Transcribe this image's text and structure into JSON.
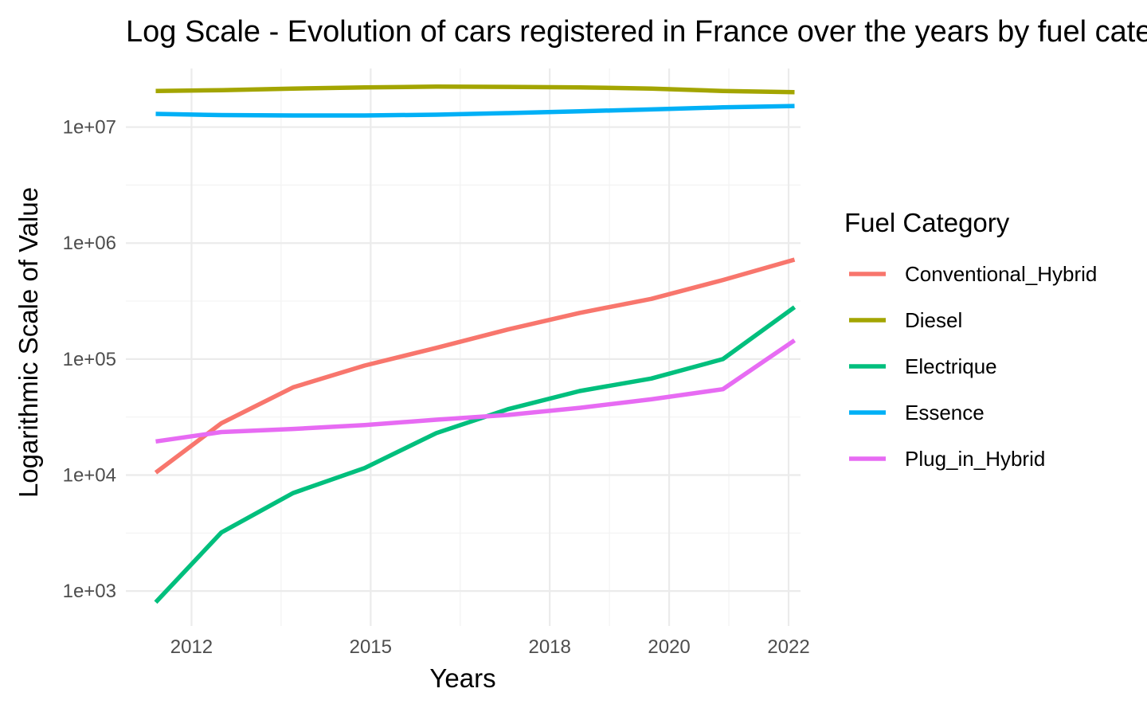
{
  "chart_data": {
    "type": "line",
    "title": "Log Scale - Evolution of cars registered in France over the years by fuel category",
    "xlabel": "Years",
    "ylabel": "Logarithmic Scale of Value",
    "x_scale": "linear",
    "y_scale": "log10",
    "xlim": [
      2010.9,
      2022.2
    ],
    "ylim": [
      500,
      32000000
    ],
    "x_ticks": [
      2012,
      2015,
      2018,
      2020,
      2022
    ],
    "x_tick_labels": [
      "2012",
      "2015",
      "2018",
      "2020",
      "2022"
    ],
    "y_ticks": [
      1000,
      10000,
      100000,
      1000000,
      10000000
    ],
    "y_tick_labels": [
      "1e+03",
      "1e+04",
      "1e+05",
      "1e+06",
      "1e+07"
    ],
    "grid": true,
    "legend": {
      "title": "Fuel Category",
      "position": "right"
    },
    "x": [
      2011.4,
      2012.5,
      2013.7,
      2014.9,
      2016.1,
      2017.3,
      2018.5,
      2019.7,
      2020.9,
      2022.1
    ],
    "series": [
      {
        "name": "Conventional_Hybrid",
        "color": "#F8766D",
        "values": [
          10500,
          28000,
          57000,
          88000,
          125000,
          180000,
          250000,
          330000,
          480000,
          720000
        ]
      },
      {
        "name": "Diesel",
        "color": "#A3A500",
        "values": [
          20500000,
          20800000,
          21500000,
          22000000,
          22300000,
          22200000,
          22000000,
          21500000,
          20500000,
          20000000
        ]
      },
      {
        "name": "Electrique",
        "color": "#00BF7D",
        "values": [
          800,
          3200,
          7000,
          11500,
          23000,
          37000,
          53000,
          68000,
          100000,
          280000
        ]
      },
      {
        "name": "Essence",
        "color": "#00B0F6",
        "values": [
          13000000,
          12700000,
          12600000,
          12600000,
          12800000,
          13200000,
          13700000,
          14200000,
          14800000,
          15200000
        ]
      },
      {
        "name": "Plug_in_Hybrid",
        "color": "#E76BF3",
        "values": [
          19500,
          23500,
          25000,
          27000,
          30000,
          33000,
          38000,
          45000,
          55000,
          145000
        ]
      }
    ]
  }
}
